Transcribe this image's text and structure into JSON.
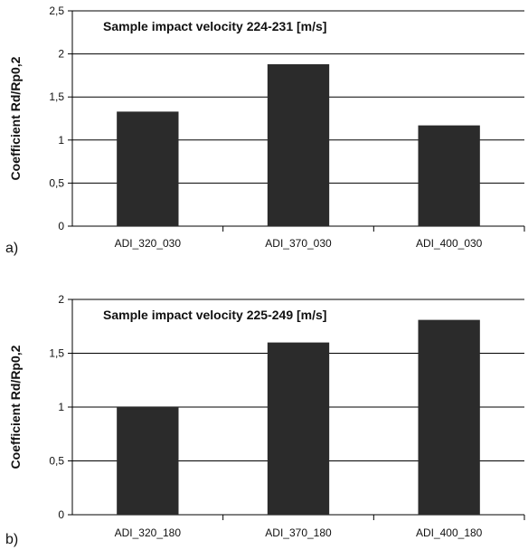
{
  "chart_data": [
    {
      "type": "bar",
      "panel_label": "a)",
      "title": "Sample impact velocity 224-231 [m/s]",
      "ylabel": "Coefficient Rd/Rp0,2",
      "ylim": [
        0,
        2.5
      ],
      "yticks": [
        "0",
        "0,5",
        "1",
        "1,5",
        "2",
        "2,5"
      ],
      "categories": [
        "ADI_320_030",
        "ADI_370_030",
        "ADI_400_030"
      ],
      "values": [
        1.33,
        1.88,
        1.17
      ],
      "bar_color": "#2b2b2b",
      "grid": true
    },
    {
      "type": "bar",
      "panel_label": "b)",
      "title": "Sample impact velocity 225-249 [m/s]",
      "ylabel": "Coefficient Rd/Rp0,2",
      "ylim": [
        0,
        2
      ],
      "yticks": [
        "0",
        "0,5",
        "1",
        "1,5",
        "2"
      ],
      "categories": [
        "ADI_320_180",
        "ADI_370_180",
        "ADI_400_180"
      ],
      "values": [
        1.0,
        1.6,
        1.81
      ],
      "bar_color": "#2b2b2b",
      "grid": true
    }
  ]
}
